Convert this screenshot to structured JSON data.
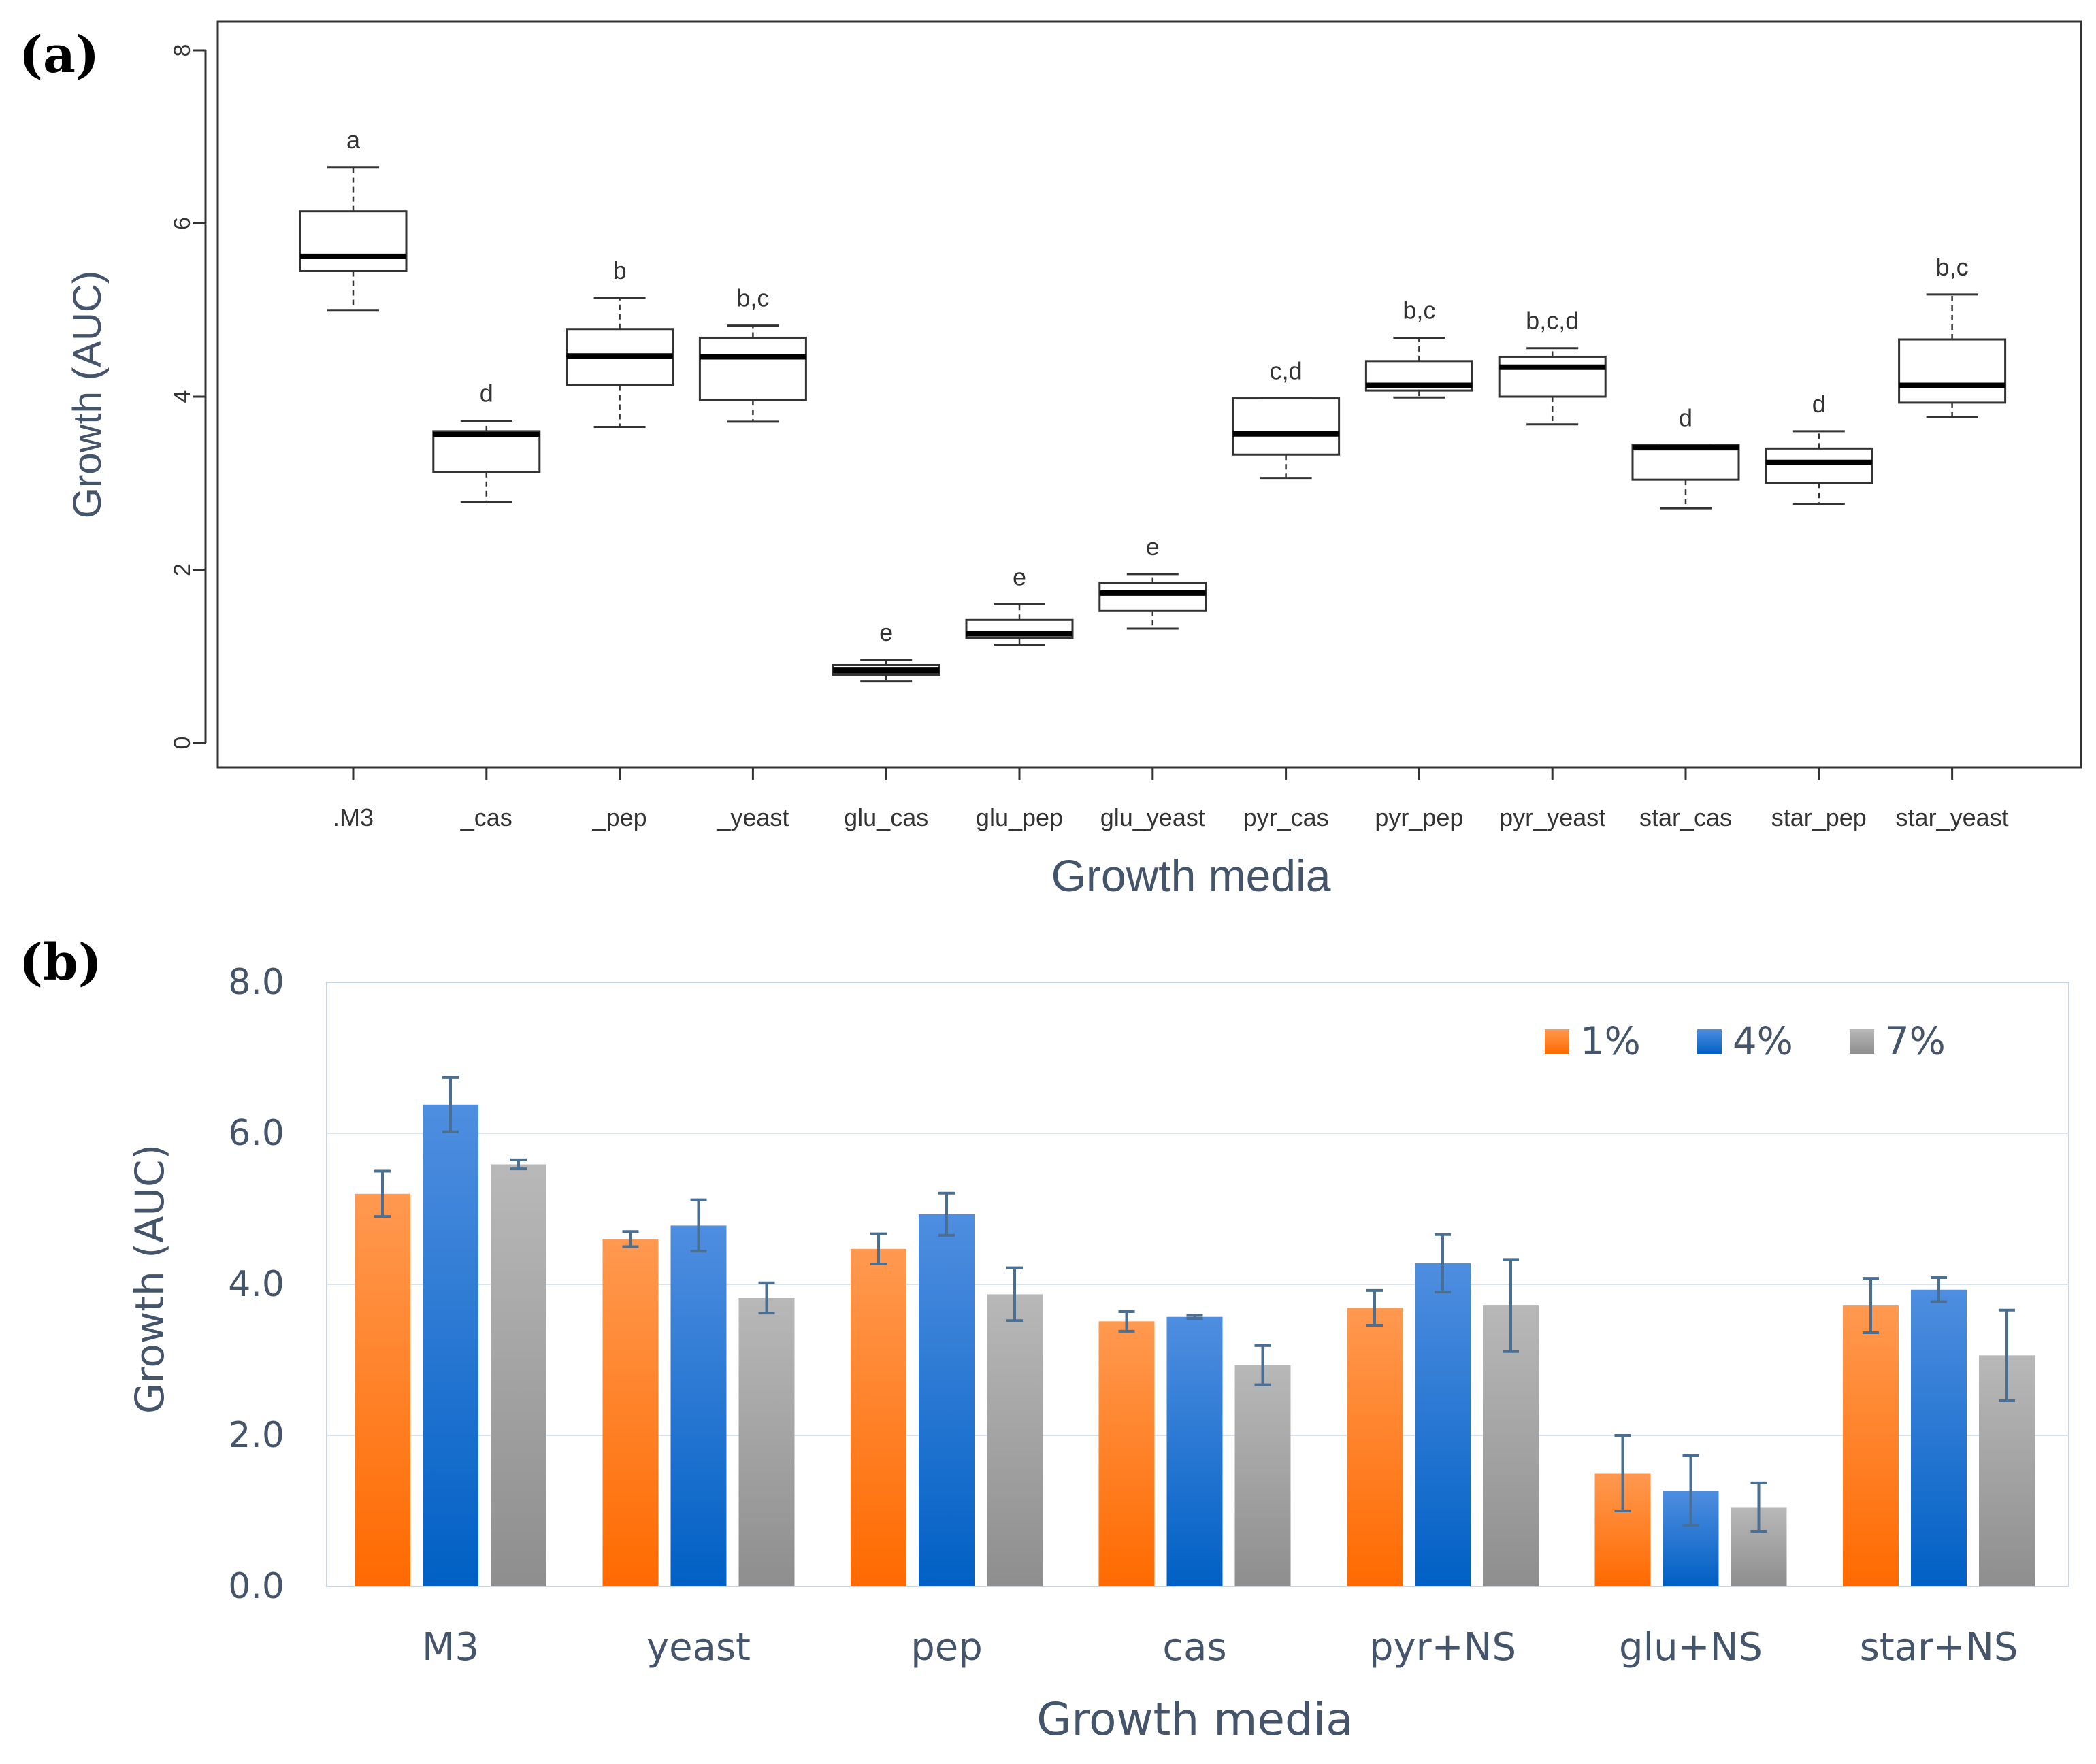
{
  "figure": {
    "panel_a_label": "(a)",
    "panel_b_label": "(b)"
  },
  "chart_data": [
    {
      "type": "box",
      "panel": "(a)",
      "xlabel": "Growth media",
      "ylabel": "Growth (AUC)",
      "ylim": [
        0,
        8
      ],
      "yticks": [
        "0",
        "2",
        "4",
        "6",
        "8"
      ],
      "grid": false,
      "categories": [
        ".M3",
        "_cas",
        "_pep",
        "_yeast",
        "glu_cas",
        "glu_pep",
        "glu_yeast",
        "pyr_cas",
        "pyr_pep",
        "pyr_yeast",
        "star_cas",
        "star_pep",
        "star_yeast"
      ],
      "boxes": [
        {
          "min": 5.0,
          "q1": 5.45,
          "median": 5.62,
          "q3": 6.14,
          "max": 6.65
        },
        {
          "min": 2.78,
          "q1": 3.13,
          "median": 3.56,
          "q3": 3.6,
          "max": 3.72
        },
        {
          "min": 3.65,
          "q1": 4.13,
          "median": 4.47,
          "q3": 4.78,
          "max": 5.14
        },
        {
          "min": 3.71,
          "q1": 3.96,
          "median": 4.46,
          "q3": 4.68,
          "max": 4.82
        },
        {
          "min": 0.71,
          "q1": 0.79,
          "median": 0.84,
          "q3": 0.9,
          "max": 0.96
        },
        {
          "min": 1.13,
          "q1": 1.21,
          "median": 1.26,
          "q3": 1.42,
          "max": 1.6
        },
        {
          "min": 1.32,
          "q1": 1.53,
          "median": 1.73,
          "q3": 1.85,
          "max": 1.95
        },
        {
          "min": 3.06,
          "q1": 3.33,
          "median": 3.57,
          "q3": 3.98,
          "max": 3.98
        },
        {
          "min": 3.99,
          "q1": 4.07,
          "median": 4.13,
          "q3": 4.41,
          "max": 4.68
        },
        {
          "min": 3.68,
          "q1": 4.0,
          "median": 4.34,
          "q3": 4.46,
          "max": 4.56
        },
        {
          "min": 2.71,
          "q1": 3.04,
          "median": 3.41,
          "q3": 3.44,
          "max": 3.44
        },
        {
          "min": 2.76,
          "q1": 3.0,
          "median": 3.24,
          "q3": 3.4,
          "max": 3.6
        },
        {
          "min": 3.76,
          "q1": 3.93,
          "median": 4.13,
          "q3": 4.66,
          "max": 5.18
        }
      ],
      "annotations": [
        "a",
        "d",
        "b",
        "b,c",
        "e",
        "e",
        "e",
        "c,d",
        "b,c",
        "b,c,d",
        "d",
        "d",
        "b,c"
      ]
    },
    {
      "type": "bar",
      "panel": "(b)",
      "xlabel": "Growth media",
      "ylabel": "Growth (AUC)",
      "ylim": [
        0,
        8
      ],
      "yticks": [
        "0.0",
        "2.0",
        "4.0",
        "6.0",
        "8.0"
      ],
      "grid": true,
      "legend_position": "top-right",
      "categories": [
        "M3",
        "yeast",
        "pep",
        "cas",
        "pyr+NS",
        "glu+NS",
        "star+NS"
      ],
      "series": [
        {
          "name": "1%",
          "values": [
            5.2,
            4.6,
            4.47,
            3.51,
            3.69,
            1.5,
            3.72
          ],
          "errors": [
            0.3,
            0.1,
            0.2,
            0.13,
            0.23,
            0.5,
            0.36
          ],
          "color_top": "#ff9950",
          "color_bottom": "#ff6a00"
        },
        {
          "name": "4%",
          "values": [
            6.38,
            4.78,
            4.93,
            3.57,
            4.28,
            1.27,
            3.93
          ],
          "errors": [
            0.36,
            0.34,
            0.28,
            0.02,
            0.38,
            0.46,
            0.16
          ],
          "color_top": "#4f8ee0",
          "color_bottom": "#0060c4"
        },
        {
          "name": "7%",
          "values": [
            5.59,
            3.82,
            3.87,
            2.93,
            3.72,
            1.05,
            3.06
          ],
          "errors": [
            0.06,
            0.2,
            0.35,
            0.26,
            0.61,
            0.32,
            0.6
          ],
          "color_top": "#b8b8b8",
          "color_bottom": "#8e8e8e"
        }
      ]
    }
  ]
}
